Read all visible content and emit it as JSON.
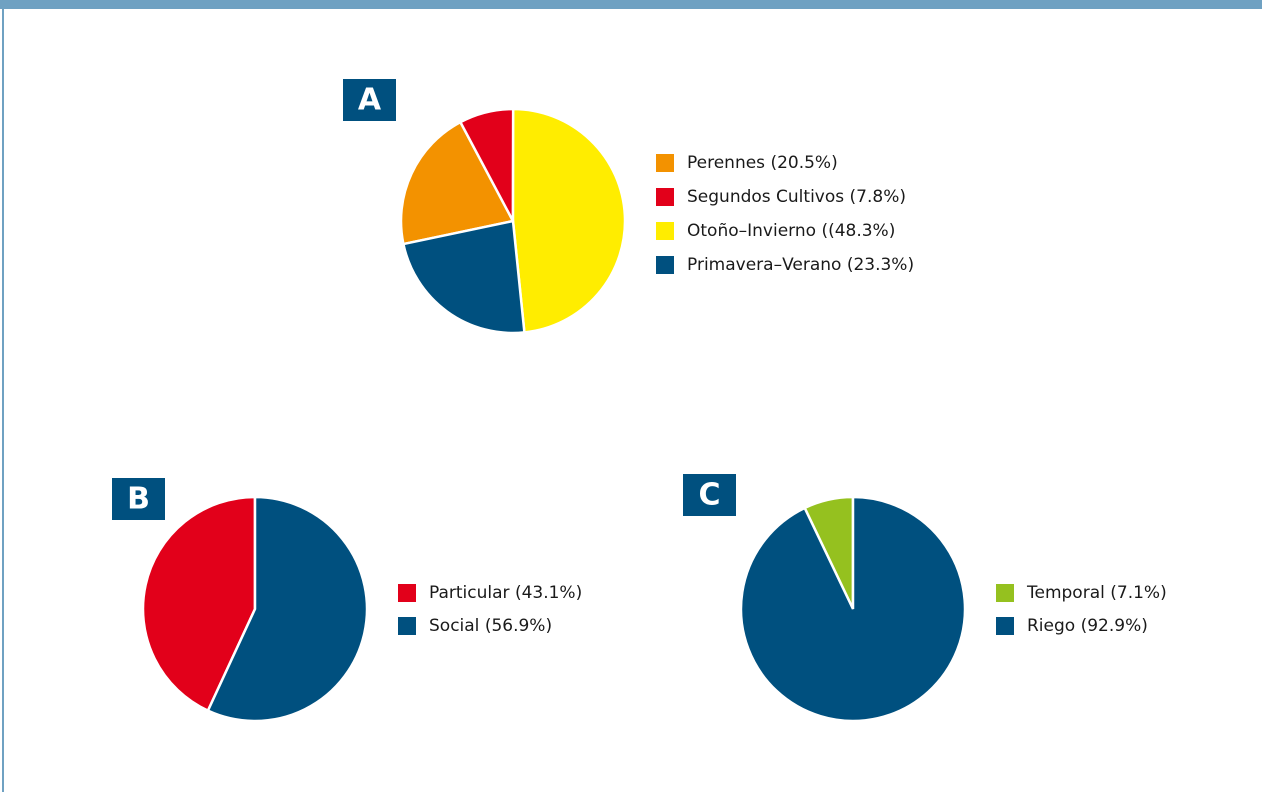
{
  "chart_data": [
    {
      "type": "pie",
      "label": "A",
      "categories": [
        "Perennes",
        "Segundos Cultivos",
        "Otoño–Invierno",
        "Primavera–Verano"
      ],
      "values": [
        20.5,
        7.8,
        48.3,
        23.3
      ],
      "value_labels": [
        "(20.5%)",
        "(7.8%)",
        "((48.3%)",
        "(23.3%)"
      ],
      "colors": [
        "#f39200",
        "#e2001a",
        "#ffed00",
        "#00507f"
      ]
    },
    {
      "type": "pie",
      "label": "B",
      "categories": [
        "Particular",
        "Social"
      ],
      "values": [
        43.1,
        56.9
      ],
      "value_labels": [
        "(43.1%)",
        "(56.9%)"
      ],
      "colors": [
        "#e2001a",
        "#00507f"
      ]
    },
    {
      "type": "pie",
      "label": "C",
      "categories": [
        "Temporal",
        "Riego"
      ],
      "values": [
        7.1,
        92.9
      ],
      "value_labels": [
        "(7.1%)",
        "(92.9%)"
      ],
      "colors": [
        "#95c11f",
        "#00507f"
      ]
    }
  ]
}
